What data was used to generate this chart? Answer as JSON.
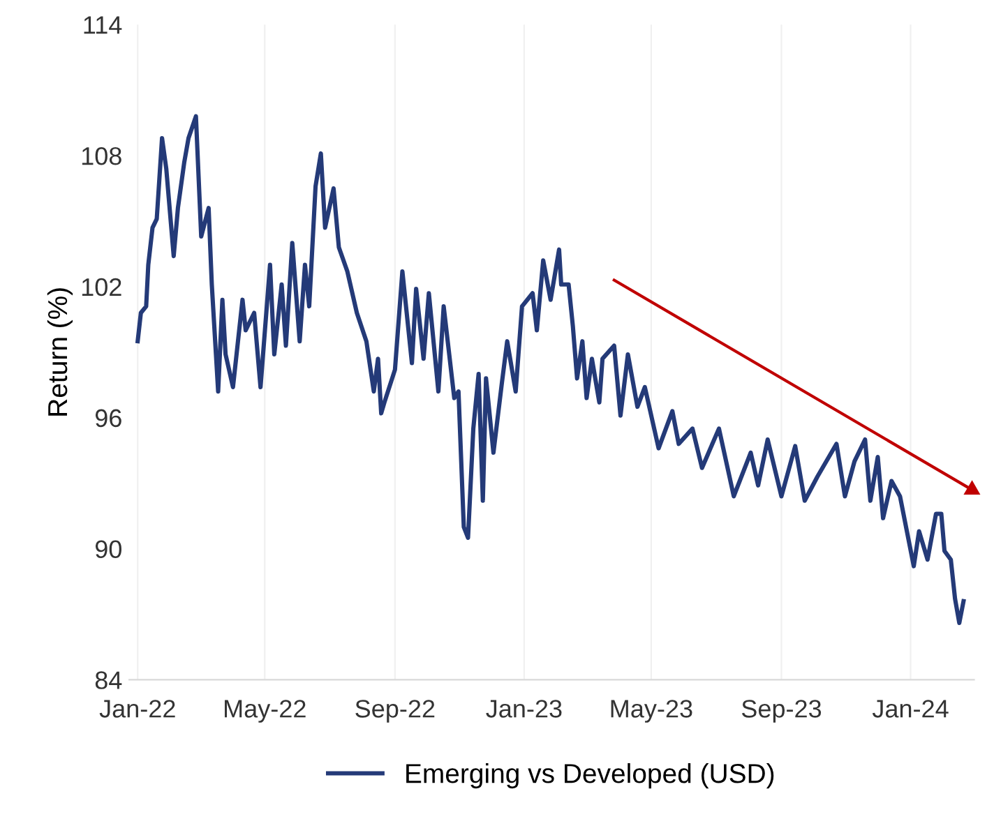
{
  "chart_data": {
    "type": "line",
    "ylabel": "Return (%)",
    "grid": "x",
    "legend": "bottom",
    "marker": "none",
    "line_style": "solid",
    "xlim": [
      "2021-12-24",
      "2024-03-01"
    ],
    "ylim": [
      84,
      114
    ],
    "yticks": [
      84,
      90,
      96,
      102,
      108,
      114
    ],
    "xticks": [
      {
        "value": "2022-01-01",
        "label": "Jan-22"
      },
      {
        "value": "2022-05-01",
        "label": "May-22"
      },
      {
        "value": "2022-09-01",
        "label": "Sep-22"
      },
      {
        "value": "2023-01-01",
        "label": "Jan-23"
      },
      {
        "value": "2023-05-01",
        "label": "May-23"
      },
      {
        "value": "2023-09-01",
        "label": "Sep-23"
      },
      {
        "value": "2024-01-01",
        "label": "Jan-24"
      }
    ],
    "series": [
      {
        "name": "Emerging vs Developed (USD)",
        "color": "#243a78",
        "x": [
          "2022-01-01",
          "2022-01-04",
          "2022-01-09",
          "2022-01-11",
          "2022-01-15",
          "2022-01-19",
          "2022-01-24",
          "2022-01-28",
          "2022-02-04",
          "2022-02-08",
          "2022-02-14",
          "2022-02-18",
          "2022-02-25",
          "2022-03-02",
          "2022-03-09",
          "2022-03-12",
          "2022-03-18",
          "2022-03-22",
          "2022-03-25",
          "2022-04-01",
          "2022-04-10",
          "2022-04-13",
          "2022-04-21",
          "2022-04-27",
          "2022-05-06",
          "2022-05-10",
          "2022-05-17",
          "2022-05-21",
          "2022-05-27",
          "2022-06-03",
          "2022-06-08",
          "2022-06-12",
          "2022-06-18",
          "2022-06-23",
          "2022-06-27",
          "2022-07-05",
          "2022-07-10",
          "2022-07-18",
          "2022-07-27",
          "2022-08-05",
          "2022-08-12",
          "2022-08-16",
          "2022-08-19",
          "2022-08-22",
          "2022-09-01",
          "2022-09-08",
          "2022-09-17",
          "2022-09-21",
          "2022-09-28",
          "2022-10-03",
          "2022-10-12",
          "2022-10-17",
          "2022-10-27",
          "2022-10-31",
          "2022-11-05",
          "2022-11-09",
          "2022-11-14",
          "2022-11-19",
          "2022-11-23",
          "2022-11-26",
          "2022-12-03",
          "2022-12-11",
          "2022-12-16",
          "2022-12-24",
          "2022-12-30",
          "2023-01-09",
          "2023-01-13",
          "2023-01-19",
          "2023-01-26",
          "2023-02-03",
          "2023-02-05",
          "2023-02-12",
          "2023-02-16",
          "2023-02-20",
          "2023-02-25",
          "2023-03-01",
          "2023-03-06",
          "2023-03-13",
          "2023-03-16",
          "2023-03-27",
          "2023-04-02",
          "2023-04-09",
          "2023-04-18",
          "2023-04-25",
          "2023-05-08",
          "2023-05-21",
          "2023-05-27",
          "2023-06-09",
          "2023-06-18",
          "2023-07-04",
          "2023-07-18",
          "2023-08-03",
          "2023-08-10",
          "2023-08-19",
          "2023-09-01",
          "2023-09-14",
          "2023-09-23",
          "2023-10-05",
          "2023-10-23",
          "2023-10-31",
          "2023-11-09",
          "2023-11-19",
          "2023-11-24",
          "2023-12-01",
          "2023-12-06",
          "2023-12-14",
          "2023-12-22",
          "2024-01-04",
          "2024-01-09",
          "2024-01-17",
          "2024-01-25",
          "2024-01-30",
          "2024-02-02",
          "2024-02-08",
          "2024-02-12",
          "2024-02-16",
          "2024-02-20"
        ],
        "values": [
          99.5,
          100.8,
          101.1,
          103.0,
          104.7,
          105.1,
          108.8,
          107.4,
          103.4,
          105.6,
          107.7,
          108.8,
          109.8,
          104.3,
          105.6,
          102.1,
          97.2,
          101.4,
          98.9,
          97.4,
          101.4,
          100.0,
          100.8,
          97.4,
          103.0,
          98.9,
          102.1,
          99.3,
          104.0,
          99.5,
          103.0,
          101.1,
          106.6,
          108.1,
          104.7,
          106.5,
          103.8,
          102.7,
          100.8,
          99.5,
          97.2,
          98.7,
          96.2,
          96.7,
          98.2,
          102.7,
          98.5,
          101.9,
          98.7,
          101.7,
          97.2,
          101.1,
          96.9,
          97.2,
          91.0,
          90.5,
          95.5,
          98.0,
          92.2,
          97.8,
          94.4,
          97.6,
          99.5,
          97.2,
          101.1,
          101.7,
          100.0,
          103.2,
          101.4,
          103.7,
          102.1,
          102.1,
          100.2,
          97.8,
          99.5,
          96.9,
          98.7,
          96.7,
          98.7,
          99.3,
          96.1,
          98.9,
          96.5,
          97.4,
          94.6,
          96.3,
          94.8,
          95.5,
          93.7,
          95.5,
          92.4,
          94.4,
          92.9,
          95.0,
          92.4,
          94.7,
          92.2,
          93.3,
          94.8,
          92.4,
          94.0,
          95.0,
          92.2,
          94.2,
          91.4,
          93.1,
          92.4,
          89.2,
          90.8,
          89.5,
          91.6,
          91.6,
          89.9,
          89.5,
          87.7,
          86.6,
          87.6
        ]
      },
      {
        "type": "line",
        "color": "#c00000",
        "marker": "triangle",
        "x": [
          "2023-03-27",
          "2024-02-28"
        ],
        "values": [
          102.3,
          92.7
        ]
      }
    ]
  }
}
